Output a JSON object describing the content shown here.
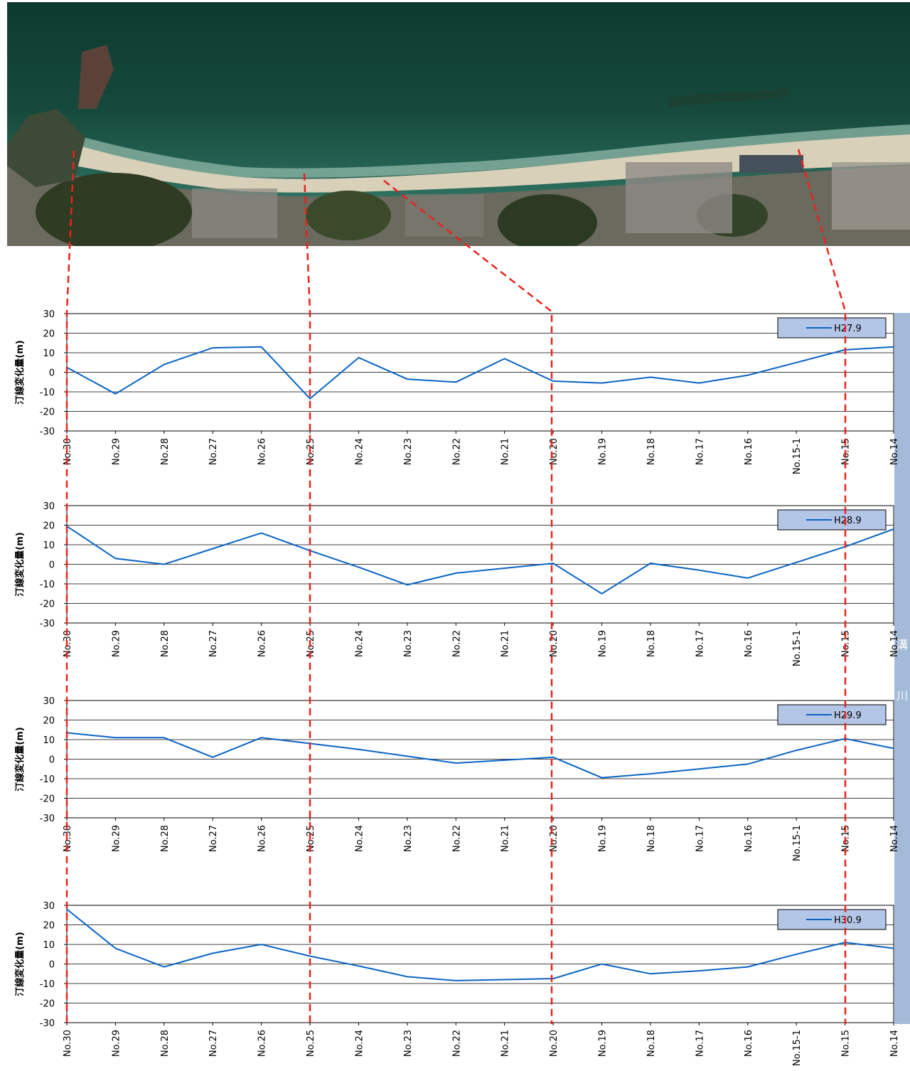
{
  "photo": {
    "name": "aerial-coastline-photo"
  },
  "river": {
    "label_part1": "溝",
    "label_part2": "川"
  },
  "colors": {
    "line": "#0a64c4",
    "guide": "#e8231d",
    "legend_bg": "#b4c6e7",
    "river_band": "#a3bbd8",
    "grid": "#000000"
  },
  "chart_data": [
    {
      "type": "line",
      "ylabel": "汀線変化量(m)",
      "ylim": [
        -30,
        30
      ],
      "yticks": [
        30,
        20,
        10,
        0,
        -10,
        -20,
        -30
      ],
      "categories": [
        "No.30",
        "No.29",
        "No.28",
        "No.27",
        "No.26",
        "No.25",
        "No.24",
        "No.23",
        "No.22",
        "No.21",
        "No.20",
        "No.19",
        "No.18",
        "No.17",
        "No.16",
        "No.15-1",
        "No.15",
        "No.14"
      ],
      "series": [
        {
          "name": "H27.9",
          "values": [
            2.5,
            -11,
            4,
            12.5,
            13,
            -13.5,
            7.5,
            -3.5,
            -5,
            7,
            -4.5,
            -5.5,
            -2.5,
            -5.5,
            -1.5,
            5,
            11.5,
            13
          ]
        }
      ],
      "legend": "top-right"
    },
    {
      "type": "line",
      "ylabel": "汀線変化量(m)",
      "ylim": [
        -30,
        30
      ],
      "yticks": [
        30,
        20,
        10,
        0,
        -10,
        -20,
        -30
      ],
      "categories": [
        "No.30",
        "No.29",
        "No.28",
        "No.27",
        "No.26",
        "No.25",
        "No.24",
        "No.23",
        "No.22",
        "No.21",
        "No.20",
        "No.19",
        "No.18",
        "No.17",
        "No.16",
        "No.15-1",
        "No.15",
        "No.14"
      ],
      "series": [
        {
          "name": "H28.9",
          "values": [
            19.5,
            3,
            0,
            8,
            16,
            7,
            -1.5,
            -10.5,
            -4.5,
            -2,
            0.5,
            -15,
            0.5,
            -3,
            -7,
            1,
            9,
            18
          ]
        }
      ],
      "legend": "top-right"
    },
    {
      "type": "line",
      "ylabel": "汀線変化量(m)",
      "ylim": [
        -30,
        30
      ],
      "yticks": [
        30,
        20,
        10,
        0,
        -10,
        -20,
        -30
      ],
      "categories": [
        "No.30",
        "No.29",
        "No.28",
        "No.27",
        "No.26",
        "No.25",
        "No.24",
        "No.23",
        "No.22",
        "No.21",
        "No.20",
        "No.19",
        "No.18",
        "No.17",
        "No.16",
        "No.15-1",
        "No.15",
        "No.14"
      ],
      "series": [
        {
          "name": "H29.9",
          "values": [
            13.5,
            11,
            11,
            1,
            11,
            8,
            5,
            1.5,
            -2,
            -0.5,
            1,
            -9.5,
            -7.5,
            -5,
            -2.5,
            4.5,
            10.5,
            5.5
          ]
        }
      ],
      "legend": "top-right"
    },
    {
      "type": "line",
      "ylabel": "汀線変化量(m)",
      "ylim": [
        -30,
        30
      ],
      "yticks": [
        30,
        20,
        10,
        0,
        -10,
        -20,
        -30
      ],
      "categories": [
        "No.30",
        "No.29",
        "No.28",
        "No.27",
        "No.26",
        "No.25",
        "No.24",
        "No.23",
        "No.22",
        "No.21",
        "No.20",
        "No.19",
        "No.18",
        "No.17",
        "No.16",
        "No.15-1",
        "No.15",
        "No.14"
      ],
      "series": [
        {
          "name": "H30.9",
          "values": [
            28,
            8,
            -1.5,
            5.5,
            10,
            4,
            -1,
            -6.5,
            -8.5,
            -8,
            -7.5,
            0,
            -5,
            -3.5,
            -1.5,
            5,
            11,
            8
          ]
        }
      ],
      "legend": "top-right"
    }
  ]
}
